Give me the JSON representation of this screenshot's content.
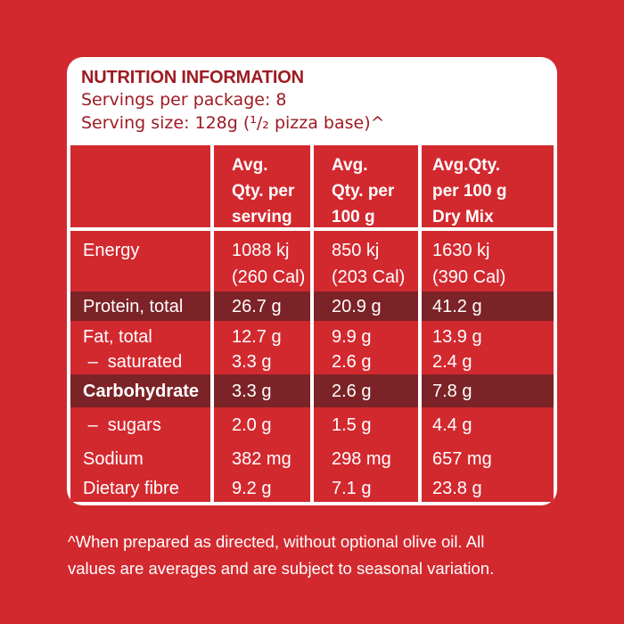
{
  "colors": {
    "background_red": "#d2292f",
    "cell_red": "#d2292f",
    "highlight_maroon": "#7c2327",
    "heading_dark_red": "#9e1b23",
    "panel_white": "#ffffff",
    "table_text_white": "#ffffff"
  },
  "panel": {
    "title": "NUTRITION INFORMATION",
    "servings_line": "Servings per package: 8",
    "serving_size_line": "Serving size: 128g (¹/₂ pizza base)^"
  },
  "table": {
    "header": {
      "col_label": "",
      "col_per_serving": "Avg.\nQty. per\nserving",
      "col_per_100g": "Avg.\nQty. per\n100 g",
      "col_per_100g_dry": "Avg.Qty.\nper 100 g\nDry Mix"
    },
    "rows": [
      {
        "label": "Energy",
        "per_serving": "1088 kj\n(260 Cal)",
        "per_100g": "850 kj\n(203 Cal)",
        "per_100g_dry": "1630 kj\n(390 Cal)",
        "highlight": false
      },
      {
        "label": "Protein, total",
        "per_serving": "26.7 g",
        "per_100g": "20.9 g",
        "per_100g_dry": "41.2 g",
        "highlight": true
      },
      {
        "label": "Fat, total\n –  saturated",
        "per_serving": "12.7 g\n3.3 g",
        "per_100g": "9.9 g\n2.6 g",
        "per_100g_dry": "13.9 g\n2.4 g",
        "highlight": false
      },
      {
        "label": "Carbohydrate",
        "per_serving": "3.3 g",
        "per_100g": "2.6 g",
        "per_100g_dry": "7.8 g",
        "highlight": true
      },
      {
        "label": " –  sugars",
        "per_serving": "2.0 g",
        "per_100g": "1.5 g",
        "per_100g_dry": "4.4 g",
        "highlight": false
      },
      {
        "label": "Sodium",
        "per_serving": "382 mg",
        "per_100g": "298 mg",
        "per_100g_dry": "657 mg",
        "highlight": false
      },
      {
        "label": "Dietary fibre",
        "per_serving": "9.2 g",
        "per_100g": "7.1 g",
        "per_100g_dry": "23.8 g",
        "highlight": false
      }
    ]
  },
  "footnote": "^When prepared as directed, without optional olive oil. All\nvalues are averages and are subject to seasonal variation."
}
